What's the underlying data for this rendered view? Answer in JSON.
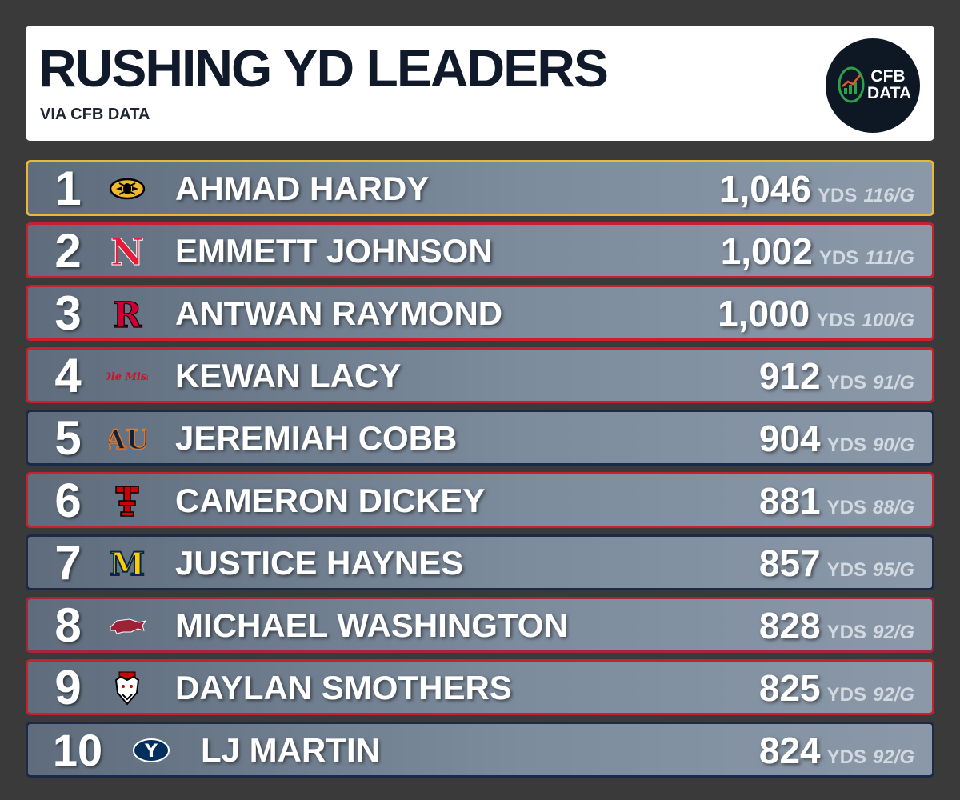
{
  "header": {
    "title": "RUSHING YD LEADERS",
    "subtitle": "VIA CFB DATA",
    "logo_text_1": "CFB",
    "logo_text_2": "DATA"
  },
  "unit_label": "YDS",
  "leaders": [
    {
      "rank": "1",
      "player": "AHMAD HARDY",
      "yards": "1,046",
      "per_game": "116/G",
      "border": "#e7b83a",
      "team_icon": "missouri-tiger-icon"
    },
    {
      "rank": "2",
      "player": "EMMETT JOHNSON",
      "yards": "1,002",
      "per_game": "111/G",
      "border": "#c8202f",
      "team_icon": "nebraska-n-icon"
    },
    {
      "rank": "3",
      "player": "ANTWAN RAYMOND",
      "yards": "1,000",
      "per_game": "100/G",
      "border": "#c8202f",
      "team_icon": "rutgers-r-icon"
    },
    {
      "rank": "4",
      "player": "KEWAN LACY",
      "yards": "912",
      "per_game": "91/G",
      "border": "#c8202f",
      "team_icon": "ole-miss-script-icon",
      "team_text": "Ole Miss"
    },
    {
      "rank": "5",
      "player": "JEREMIAH COBB",
      "yards": "904",
      "per_game": "90/G",
      "border": "#1c2a4a",
      "team_icon": "auburn-au-icon"
    },
    {
      "rank": "6",
      "player": "CAMERON DICKEY",
      "yards": "881",
      "per_game": "88/G",
      "border": "#c8202f",
      "team_icon": "texas-tech-tt-icon"
    },
    {
      "rank": "7",
      "player": "JUSTICE HAYNES",
      "yards": "857",
      "per_game": "95/G",
      "border": "#1c2a4a",
      "team_icon": "michigan-m-icon"
    },
    {
      "rank": "8",
      "player": "MICHAEL WASHINGTON",
      "yards": "828",
      "per_game": "92/G",
      "border": "#a5253a",
      "team_icon": "arkansas-razorback-icon"
    },
    {
      "rank": "9",
      "player": "DAYLAN SMOTHERS",
      "yards": "825",
      "per_game": "92/G",
      "border": "#c8202f",
      "team_icon": "nc-state-wolf-icon"
    },
    {
      "rank": "10",
      "player": "LJ MARTIN",
      "yards": "824",
      "per_game": "92/G",
      "border": "#1c2a4a",
      "team_icon": "byu-y-icon"
    }
  ]
}
